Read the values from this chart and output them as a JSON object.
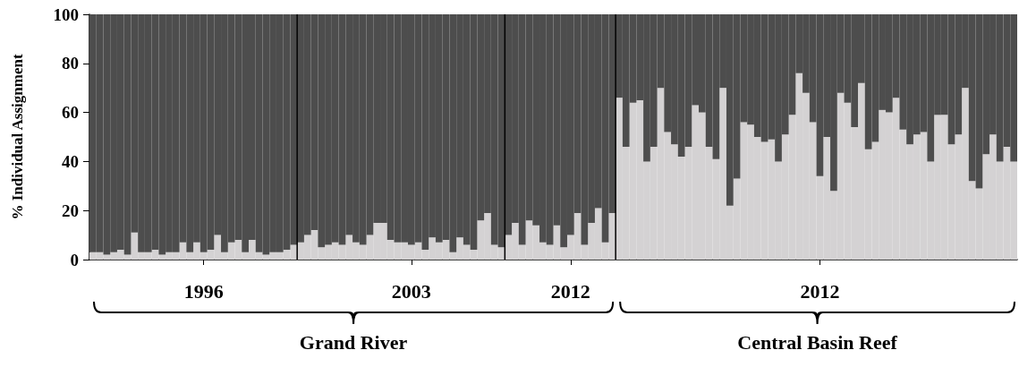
{
  "chart_data": {
    "type": "bar",
    "stacked": true,
    "ylabel": "% Individual Assignment",
    "categories": [
      null,
      null,
      null,
      null,
      null,
      null,
      null,
      null,
      null,
      null,
      null,
      null,
      null,
      null,
      null,
      null,
      "1996",
      null,
      null,
      null,
      null,
      null,
      null,
      null,
      null,
      null,
      null,
      null,
      null,
      null,
      null,
      null,
      null,
      null,
      null,
      null,
      null,
      null,
      null,
      null,
      null,
      null,
      null,
      null,
      null,
      null,
      "2003",
      null,
      null,
      null,
      null,
      null,
      null,
      null,
      null,
      null,
      null,
      null,
      null,
      null,
      null,
      null,
      null,
      null,
      null,
      null,
      null,
      null,
      null,
      "2012",
      null,
      null,
      null,
      null,
      null,
      null,
      null,
      null,
      null,
      null,
      null,
      null,
      null,
      null,
      null,
      null,
      null,
      null,
      null,
      null,
      null,
      null,
      null,
      null,
      null,
      null,
      null,
      null,
      null,
      null,
      null,
      null,
      null,
      null,
      null,
      "2012",
      null,
      null,
      null,
      null,
      null,
      null,
      null,
      null,
      null,
      null,
      null,
      null,
      null,
      null,
      null,
      null,
      null,
      null,
      null,
      null,
      null,
      null,
      null,
      null,
      null,
      null,
      null,
      null
    ],
    "series": [
      {
        "color": "#d4d2d3",
        "values": [
          3,
          3,
          2,
          3,
          4,
          2,
          11,
          3,
          3,
          4,
          2,
          3,
          3,
          7,
          3,
          7,
          3,
          4,
          10,
          3,
          7,
          8,
          3,
          8,
          3,
          2,
          3,
          3,
          4,
          6,
          7,
          10,
          12,
          5,
          6,
          7,
          6,
          10,
          7,
          6,
          10,
          15,
          15,
          8,
          7,
          7,
          6,
          7,
          4,
          9,
          7,
          8,
          3,
          9,
          6,
          4,
          16,
          19,
          6,
          5,
          10,
          15,
          6,
          16,
          14,
          7,
          6,
          14,
          5,
          10,
          19,
          6,
          15,
          21,
          7,
          19,
          66,
          46,
          64,
          65,
          40,
          46,
          70,
          52,
          47,
          42,
          46,
          63,
          60,
          46,
          41,
          70,
          22,
          33,
          56,
          55,
          50,
          48,
          49,
          40,
          51,
          59,
          76,
          68,
          56,
          34,
          50,
          28,
          68,
          64,
          54,
          72,
          45,
          48,
          61,
          60,
          66,
          53,
          47,
          51,
          52,
          40,
          59,
          59,
          47,
          51,
          70,
          32,
          29,
          43,
          51,
          40,
          46,
          40
        ]
      },
      {
        "color": "#4d4d4d",
        "values": [
          97,
          97,
          98,
          97,
          96,
          98,
          89,
          97,
          97,
          96,
          98,
          97,
          97,
          93,
          97,
          93,
          97,
          96,
          90,
          97,
          93,
          92,
          97,
          92,
          97,
          98,
          97,
          97,
          96,
          94,
          93,
          90,
          88,
          95,
          94,
          93,
          94,
          90,
          93,
          94,
          90,
          85,
          85,
          92,
          93,
          93,
          94,
          93,
          96,
          91,
          93,
          92,
          97,
          91,
          94,
          96,
          84,
          81,
          94,
          95,
          90,
          85,
          94,
          84,
          86,
          93,
          94,
          86,
          95,
          90,
          81,
          94,
          85,
          79,
          93,
          81,
          34,
          54,
          36,
          35,
          60,
          54,
          30,
          48,
          53,
          58,
          54,
          37,
          40,
          54,
          59,
          30,
          78,
          67,
          44,
          45,
          50,
          52,
          51,
          60,
          49,
          41,
          24,
          32,
          44,
          66,
          50,
          72,
          32,
          36,
          46,
          28,
          55,
          52,
          39,
          40,
          34,
          47,
          53,
          49,
          48,
          60,
          41,
          41,
          53,
          49,
          30,
          68,
          71,
          57,
          49,
          60,
          54,
          60
        ]
      }
    ],
    "ylim": [
      0,
      100
    ],
    "yticks": [
      0,
      20,
      40,
      60,
      80,
      100
    ],
    "grid": false,
    "annotations": [
      "Grand River",
      "Central Basin Reef"
    ]
  }
}
